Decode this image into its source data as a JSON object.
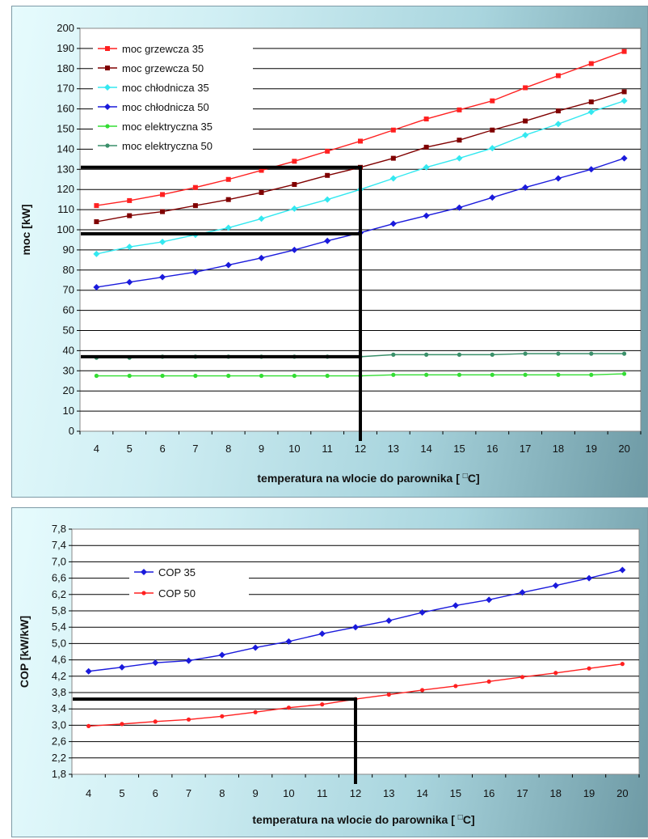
{
  "charts": [
    {
      "type": "line",
      "title": "",
      "xlabel": "temperatura na wlocie do parownika [ ",
      "xlabel_suffix": "C]",
      "ylabel": "moc [kW]",
      "x": [
        4,
        5,
        6,
        7,
        8,
        9,
        10,
        11,
        12,
        13,
        14,
        15,
        16,
        17,
        18,
        19,
        20
      ],
      "ylim": [
        0,
        200
      ],
      "ystep": 10,
      "ytick_decimals": 0,
      "grid": true,
      "legend_position": "top-left",
      "series": [
        {
          "name": "moc grzewcza 35",
          "color": "#ff2020",
          "marker": "square",
          "values": [
            112,
            114.5,
            117.5,
            121,
            125,
            129.5,
            134,
            139,
            144,
            149.5,
            155,
            159.5,
            164,
            170.5,
            176.5,
            182.5,
            188.5
          ]
        },
        {
          "name": "moc grzewcza 50",
          "color": "#800000",
          "marker": "square",
          "values": [
            104,
            107,
            109,
            112,
            115,
            118.5,
            122.5,
            127,
            131,
            135.5,
            141,
            144.5,
            149.5,
            154,
            159,
            163.5,
            168.5
          ]
        },
        {
          "name": "moc chłodnicza 35",
          "color": "#33e8f0",
          "marker": "diamond",
          "values": [
            88,
            91.5,
            94,
            97.5,
            101,
            105.5,
            110.5,
            115,
            120,
            125.5,
            131,
            135.5,
            140.5,
            147,
            152.5,
            158.5,
            164
          ]
        },
        {
          "name": "moc chłodnicza 50",
          "color": "#1a1adc",
          "marker": "diamond",
          "values": [
            71.5,
            74,
            76.5,
            79,
            82.5,
            86,
            90,
            94.5,
            98.5,
            103,
            107,
            111,
            116,
            121,
            125.5,
            130,
            135.5
          ]
        },
        {
          "name": "moc elektryczna 35",
          "color": "#33dd33",
          "marker": "circle",
          "values": [
            27.5,
            27.5,
            27.5,
            27.5,
            27.5,
            27.5,
            27.5,
            27.5,
            27.5,
            28,
            28,
            28,
            28,
            28,
            28,
            28,
            28.5
          ]
        },
        {
          "name": "moc elektryczna 50",
          "color": "#3a8f6a",
          "marker": "circle",
          "values": [
            36.5,
            36.5,
            37,
            37,
            37,
            37,
            37,
            37,
            37,
            38,
            38,
            38,
            38,
            38.5,
            38.5,
            38.5,
            38.5
          ]
        }
      ],
      "reference_lines": [
        {
          "y": 131,
          "x_from": 4,
          "x_to": 12
        },
        {
          "y": 98,
          "x_from": 4,
          "x_to": 12
        },
        {
          "y": 37,
          "x_from": 4,
          "x_to": 12
        },
        {
          "x": 12,
          "y_from": 0,
          "y_to": 131
        }
      ]
    },
    {
      "type": "line",
      "title": "",
      "xlabel": "temperatura na wlocie do parownika [ ",
      "xlabel_suffix": "C]",
      "ylabel": "COP  [kW/kW]",
      "x": [
        4,
        5,
        6,
        7,
        8,
        9,
        10,
        11,
        12,
        13,
        14,
        15,
        16,
        17,
        18,
        19,
        20
      ],
      "ylim": [
        1.8,
        7.8
      ],
      "ystep": 0.4,
      "ytick_decimals": 1,
      "ytick_decimal_sep": ",",
      "grid": true,
      "legend_position": "top-left",
      "series": [
        {
          "name": "COP 35",
          "color": "#1a1adc",
          "marker": "diamond",
          "values": [
            4.32,
            4.42,
            4.53,
            4.58,
            4.72,
            4.9,
            5.05,
            5.24,
            5.4,
            5.56,
            5.76,
            5.93,
            6.07,
            6.25,
            6.42,
            6.6,
            6.8
          ]
        },
        {
          "name": "COP 50",
          "color": "#ff2020",
          "marker": "circle",
          "values": [
            2.98,
            3.03,
            3.09,
            3.14,
            3.22,
            3.32,
            3.43,
            3.51,
            3.64,
            3.75,
            3.86,
            3.96,
            4.07,
            4.18,
            4.28,
            4.39,
            4.5
          ]
        }
      ],
      "reference_lines": [
        {
          "y": 3.64,
          "x_from": 4,
          "x_to": 12
        },
        {
          "x": 12,
          "y_from": 1.8,
          "y_to": 3.64
        }
      ]
    }
  ]
}
